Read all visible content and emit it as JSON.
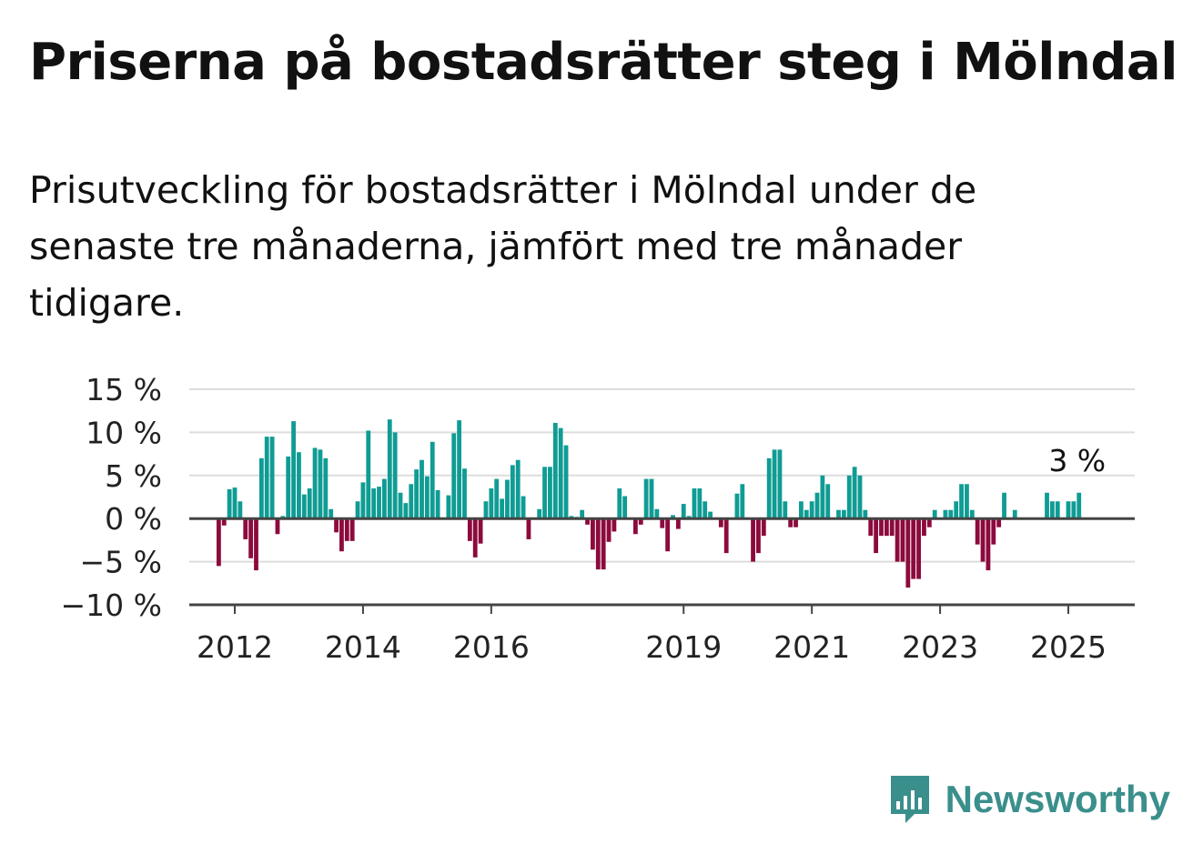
{
  "title": "Priserna på bostadsrätter steg i Mölndal",
  "subtitle": "Prisutveckling för bostadsrätter i Mölndal under de senaste tre månaderna, jämfört med tre månader tidigare.",
  "brand": {
    "name": "Newsworthy",
    "icon": "newsworthy-logo-icon",
    "color": "#3a8f8c"
  },
  "colors": {
    "positive": "#0f9c94",
    "negative": "#8c0a3d",
    "grid": "#dddddd",
    "zero_line": "#444444"
  },
  "chart_data": {
    "type": "bar",
    "title": "Priserna på bostadsrätter steg i Mölndal",
    "xlabel": "",
    "ylabel": "",
    "x_start": "2011-10",
    "x_step": "month",
    "ylim": [
      -10,
      15
    ],
    "y_ticks": [
      -10,
      -5,
      0,
      5,
      10,
      15
    ],
    "y_tick_labels": [
      "−10 %",
      "−5 %",
      "0 %",
      "5 %",
      "10 %",
      "15 %"
    ],
    "x_ticks": [
      {
        "date": "2012-01",
        "label": "2012"
      },
      {
        "date": "2014-01",
        "label": "2014"
      },
      {
        "date": "2016-01",
        "label": "2016"
      },
      {
        "date": "2019-01",
        "label": "2019"
      },
      {
        "date": "2021-01",
        "label": "2021"
      },
      {
        "date": "2023-01",
        "label": "2023"
      },
      {
        "date": "2025-01",
        "label": "2025"
      }
    ],
    "grid": true,
    "legend": "none",
    "last_value_label": "3 %",
    "values": [
      -5.5,
      -0.8,
      3.4,
      3.6,
      2.0,
      -2.4,
      -4.6,
      -6.0,
      7.0,
      9.5,
      9.5,
      -1.8,
      0.3,
      7.2,
      11.3,
      7.7,
      2.8,
      3.5,
      8.2,
      8.0,
      7.0,
      1.1,
      -1.6,
      -3.8,
      -2.6,
      -2.6,
      2.0,
      4.2,
      10.2,
      3.5,
      3.7,
      4.6,
      11.5,
      10.0,
      3.0,
      1.8,
      4.0,
      5.7,
      6.8,
      4.9,
      8.9,
      3.3,
      0.0,
      2.7,
      9.9,
      11.4,
      5.8,
      -2.6,
      -4.5,
      -2.9,
      2.0,
      3.5,
      4.6,
      2.3,
      4.5,
      6.2,
      6.8,
      2.6,
      -2.4,
      0.0,
      1.1,
      6.0,
      6.0,
      11.1,
      10.5,
      8.5,
      0.3,
      0.2,
      1.0,
      -0.7,
      -3.6,
      -5.9,
      -5.9,
      -2.7,
      -1.5,
      3.5,
      2.6,
      0.0,
      -1.8,
      -0.7,
      4.6,
      4.6,
      1.1,
      -1.1,
      -3.8,
      0.4,
      -1.2,
      1.7,
      0.3,
      3.5,
      3.5,
      2.0,
      0.8,
      0.0,
      -1.0,
      -4.0,
      0.0,
      2.9,
      4.0,
      0.0,
      -5.0,
      -4.0,
      -2.0,
      7.0,
      8.0,
      8.0,
      2.0,
      -1.0,
      -1.0,
      2.0,
      1.0,
      2.0,
      3.0,
      5.0,
      4.0,
      0.0,
      1.0,
      1.0,
      5.0,
      6.0,
      5.0,
      1.0,
      -2.0,
      -4.0,
      -2.0,
      -2.0,
      -2.0,
      -5.0,
      -5.0,
      -8.0,
      -7.0,
      -7.0,
      -2.0,
      -1.0,
      1.0,
      0.0,
      1.0,
      1.0,
      2.0,
      4.0,
      4.0,
      1.0,
      -3.0,
      -5.0,
      -6.0,
      -3.0,
      -1.0,
      3.0,
      0.0,
      1.0,
      0.0,
      0.0,
      0.0,
      0.0,
      0.0,
      3.0,
      2.0,
      2.0,
      0.0,
      2.0,
      2.0,
      3.0
    ]
  }
}
